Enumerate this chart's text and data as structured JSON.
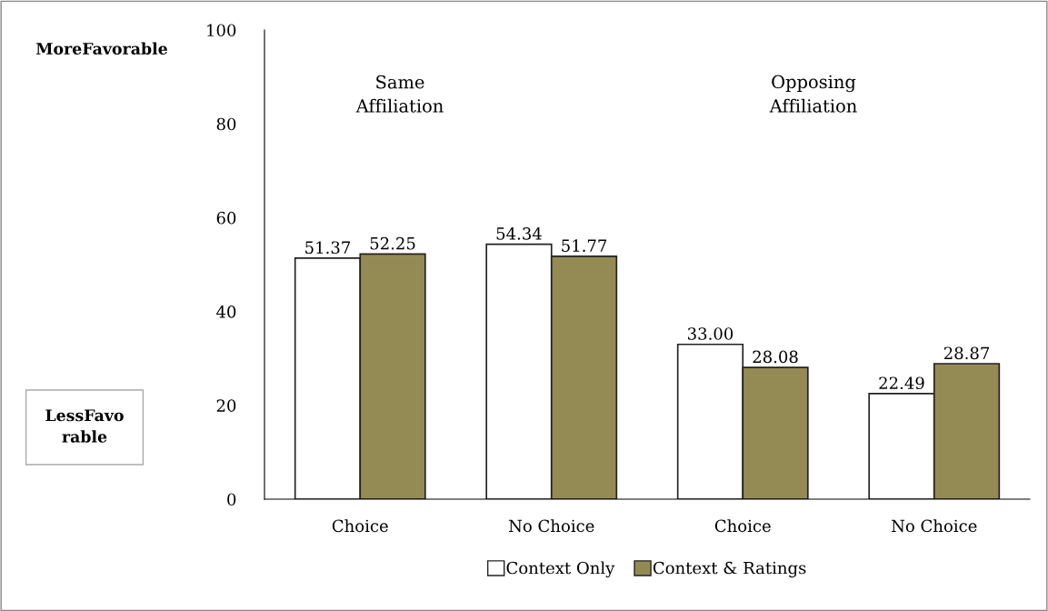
{
  "chart_data": {
    "type": "bar",
    "categories": [
      "Choice",
      "No Choice",
      "Choice",
      "No Choice"
    ],
    "series": [
      {
        "name": "Context Only",
        "color": "#ffffff",
        "values": [
          51.37,
          54.34,
          33.0,
          22.49
        ],
        "value_labels": [
          "51.37",
          "54.34",
          "33.00",
          "22.49"
        ]
      },
      {
        "name": "Context & Ratings",
        "color": "#948a54",
        "values": [
          52.25,
          51.77,
          28.08,
          28.87
        ],
        "value_labels": [
          "52.25",
          "51.77",
          "28.08",
          "28.87"
        ]
      }
    ],
    "ylim": [
      0,
      100
    ],
    "yticks": [
      0,
      20,
      40,
      60,
      80,
      100
    ],
    "grid": false,
    "legend": "bottom",
    "annotations": [
      "MoreFavorable",
      "LessFavo\nrable",
      "Same\nAffiliation",
      "Opposing\nAffiliation"
    ]
  }
}
